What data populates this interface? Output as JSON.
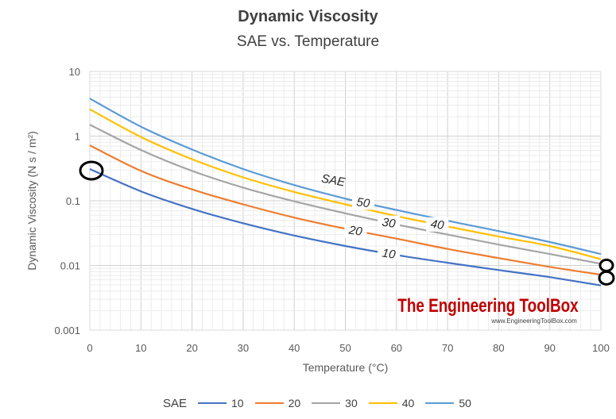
{
  "chart_data": {
    "type": "line",
    "title": "Dynamic Viscosity",
    "subtitle": "SAE vs. Temperature",
    "xlabel": "Temperature (°C)",
    "ylabel": "Dynamic Viscosity (N s / m²)",
    "xlim": [
      0,
      100
    ],
    "ylim": [
      0.001,
      10
    ],
    "yscale": "log",
    "x_ticks": [
      "0",
      "10",
      "20",
      "30",
      "40",
      "50",
      "60",
      "70",
      "80",
      "90",
      "100"
    ],
    "y_ticks": [
      "10",
      "1",
      "0.1",
      "0.01",
      "0.001"
    ],
    "grid": true,
    "legend_title": "SAE",
    "legend_position": "bottom",
    "x": [
      0,
      10,
      20,
      30,
      40,
      50,
      60,
      70,
      80,
      90,
      100
    ],
    "series": [
      {
        "name": "10",
        "color": "#4472C4",
        "label_x": 58.5,
        "values": [
          0.31,
          0.14,
          0.075,
          0.045,
          0.029,
          0.02,
          0.0145,
          0.011,
          0.0085,
          0.0066,
          0.0049
        ]
      },
      {
        "name": "20",
        "color": "#ED7D31",
        "label_x": 52,
        "values": [
          0.72,
          0.29,
          0.15,
          0.088,
          0.055,
          0.037,
          0.026,
          0.018,
          0.013,
          0.0095,
          0.0072
        ]
      },
      {
        "name": "30",
        "color": "#A5A5A5",
        "label_x": 58.5,
        "values": [
          1.5,
          0.61,
          0.29,
          0.16,
          0.098,
          0.064,
          0.043,
          0.03,
          0.021,
          0.015,
          0.0106
        ]
      },
      {
        "name": "40",
        "color": "#FFC000",
        "label_x": 68,
        "values": [
          2.6,
          0.97,
          0.44,
          0.23,
          0.137,
          0.088,
          0.058,
          0.04,
          0.028,
          0.02,
          0.0125
        ]
      },
      {
        "name": "50",
        "color": "#5B9BD5",
        "label_x": 53.5,
        "values": [
          3.8,
          1.4,
          0.62,
          0.31,
          0.175,
          0.108,
          0.072,
          0.049,
          0.034,
          0.023,
          0.015
        ]
      }
    ],
    "annotation": "SAE",
    "markers": [
      {
        "name": "circle-marker",
        "x": 0,
        "y": 0.31
      },
      {
        "name": "figure-eight-marker",
        "x": 100,
        "y": 0.008
      }
    ]
  },
  "branding": {
    "name": "The Engineering ToolBox",
    "url": "www.EngineeringToolBox.com",
    "color": "#C00000"
  }
}
